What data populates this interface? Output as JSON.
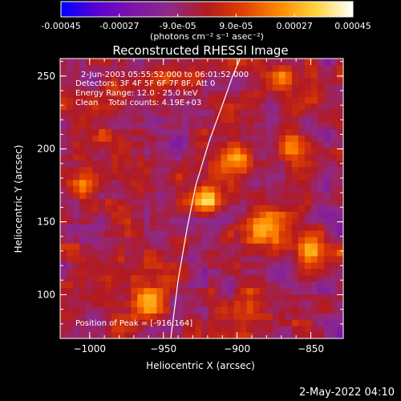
{
  "colorbar": {
    "tick_labels": [
      "-0.00045",
      "-0.00027",
      "-9.0e-05",
      "9.0e-05",
      "0.00027",
      "0.00045"
    ],
    "range": [
      -0.00045,
      0.00045
    ],
    "units": "(photons cm⁻² s⁻¹ asec⁻²)",
    "colors": [
      "#0000ff",
      "#5b00d2",
      "#7e14a8",
      "#8f2a88",
      "#b21a20",
      "#e04000",
      "#ff8a00",
      "#ffd440",
      "#ffffff"
    ]
  },
  "chart_data": {
    "type": "heatmap",
    "title": "Reconstructed RHESSI Image",
    "xlabel": "Heliocentric X (arcsec)",
    "ylabel": "Heliocentric Y (arcsec)",
    "xlim": [
      -1020,
      -828
    ],
    "ylim": [
      70,
      262
    ],
    "xticks": [
      -1000,
      -950,
      -900,
      -850
    ],
    "xtick_labels": [
      "−1000",
      "−950",
      "−900",
      "−850"
    ],
    "yticks": [
      100,
      150,
      200,
      250
    ],
    "ytick_labels": [
      "100",
      "150",
      "200",
      "250"
    ],
    "annotations": [
      "2-Jun-2003 05:55:52.000 to 06:01:52.000",
      "Detectors: 3F 4F 5F 6F 7F 8F, Att 0",
      "Energy Range: 12.0 - 25.0 keV",
      "Clean    Total counts: 4.19E+03"
    ],
    "peak_label": "Position of Peak = [-916,164]",
    "limb_points": [
      [
        -945,
        70
      ],
      [
        -940,
        110
      ],
      [
        -934,
        145
      ],
      [
        -928,
        175
      ],
      [
        -919,
        205
      ],
      [
        -910,
        230
      ],
      [
        -903,
        250
      ],
      [
        -898,
        262
      ]
    ],
    "hotspots": [
      {
        "x": -920,
        "y": 164,
        "amp": 1.0,
        "r": 9
      },
      {
        "x": -880,
        "y": 145,
        "amp": 0.75,
        "r": 14
      },
      {
        "x": -960,
        "y": 95,
        "amp": 0.7,
        "r": 11
      },
      {
        "x": -850,
        "y": 130,
        "amp": 0.55,
        "r": 10
      },
      {
        "x": -1005,
        "y": 175,
        "amp": 0.5,
        "r": 8
      },
      {
        "x": -990,
        "y": 210,
        "amp": 0.45,
        "r": 7
      },
      {
        "x": -950,
        "y": 250,
        "amp": 0.5,
        "r": 8
      },
      {
        "x": -900,
        "y": 190,
        "amp": 0.6,
        "r": 12
      },
      {
        "x": -860,
        "y": 200,
        "amp": 0.5,
        "r": 10
      },
      {
        "x": -890,
        "y": 90,
        "amp": 0.45,
        "r": 9
      },
      {
        "x": -1010,
        "y": 130,
        "amp": 0.4,
        "r": 8
      },
      {
        "x": -870,
        "y": 250,
        "amp": 0.55,
        "r": 9
      }
    ]
  },
  "footer": {
    "date": "2-May-2022 04:10"
  }
}
